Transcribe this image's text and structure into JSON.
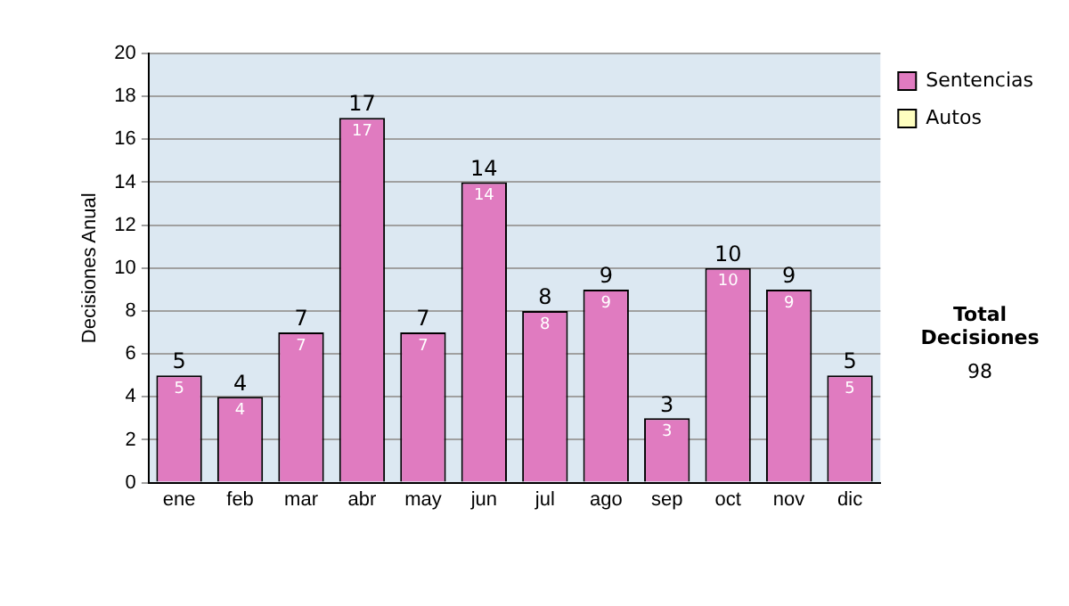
{
  "chart_data": {
    "type": "bar",
    "stacked": true,
    "ylabel": "Decisiones Anual",
    "categories": [
      "ene",
      "feb",
      "mar",
      "abr",
      "may",
      "jun",
      "jul",
      "ago",
      "sep",
      "oct",
      "nov",
      "dic"
    ],
    "series": [
      {
        "name": "Sentencias",
        "color": "#e07bc0",
        "values": [
          5,
          4,
          7,
          17,
          7,
          14,
          8,
          9,
          3,
          10,
          9,
          5
        ],
        "value_labels": [
          "5",
          "4",
          "7",
          "17",
          "7",
          "14",
          "8",
          "9",
          "3",
          "10",
          "9",
          "5"
        ]
      },
      {
        "name": "Autos",
        "color": "#ffffc0",
        "values": [
          0,
          0,
          0,
          0,
          0,
          0,
          0,
          0,
          0,
          0,
          0,
          0
        ]
      }
    ],
    "totals": [
      "5",
      "4",
      "7",
      "17",
      "7",
      "14",
      "8",
      "9",
      "3",
      "10",
      "9",
      "5"
    ],
    "ylim": [
      0,
      20
    ],
    "yticks": [
      0,
      2,
      4,
      6,
      8,
      10,
      12,
      14,
      16,
      18,
      20
    ],
    "grid": "y",
    "legend": "right",
    "annotations": [
      "Total Decisiones",
      "98"
    ]
  }
}
